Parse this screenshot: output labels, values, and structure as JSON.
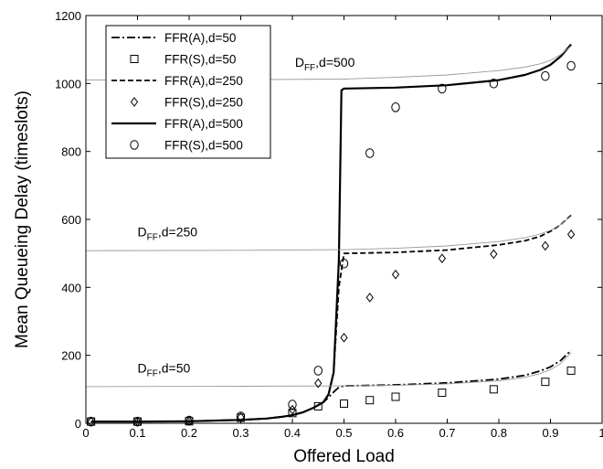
{
  "chart_data": {
    "type": "line",
    "xlabel": "Offered Load",
    "ylabel": "Mean Queueing Delay (timeslots)",
    "xlim": [
      0,
      1
    ],
    "ylim": [
      0,
      1200
    ],
    "xticks": [
      0,
      0.1,
      0.2,
      0.3,
      0.4,
      0.5,
      0.6,
      0.7,
      0.8,
      0.9,
      1
    ],
    "xtick_labels": [
      "0",
      "0.1",
      "0.2",
      "0.3",
      "0.4",
      "0.5",
      "0.6",
      "0.7",
      "0.8",
      "0.9",
      "1"
    ],
    "yticks": [
      0,
      200,
      400,
      600,
      800,
      1000,
      1200
    ],
    "ytick_labels": [
      "0",
      "200",
      "400",
      "600",
      "800",
      "1000",
      "1200"
    ],
    "grid": false,
    "legend_position": "top-left",
    "series": [
      {
        "name": "FFR(A),d=50",
        "style": "dashdot",
        "marker": "none",
        "color": "#000000",
        "x": [
          0.01,
          0.1,
          0.2,
          0.3,
          0.35,
          0.38,
          0.4,
          0.42,
          0.44,
          0.46,
          0.47,
          0.48,
          0.49,
          0.5,
          0.6,
          0.7,
          0.8,
          0.85,
          0.88,
          0.9,
          0.92,
          0.94
        ],
        "y": [
          5,
          5,
          6,
          10,
          14,
          19,
          24,
          32,
          45,
          62,
          76,
          92,
          106,
          110,
          113,
          119,
          130,
          141,
          154,
          166,
          185,
          215
        ]
      },
      {
        "name": "FFR(S),d=50",
        "style": "none",
        "marker": "square",
        "color": "#000000",
        "x": [
          0.01,
          0.1,
          0.2,
          0.3,
          0.4,
          0.45,
          0.5,
          0.55,
          0.6,
          0.69,
          0.79,
          0.89,
          0.94
        ],
        "y": [
          5,
          5,
          6,
          16,
          30,
          50,
          58,
          68,
          78,
          90,
          100,
          122,
          155
        ]
      },
      {
        "name": "FFR(A),d=250",
        "style": "dashed",
        "marker": "none",
        "color": "#000000",
        "x": [
          0.01,
          0.1,
          0.2,
          0.3,
          0.35,
          0.38,
          0.4,
          0.42,
          0.44,
          0.46,
          0.47,
          0.48,
          0.49,
          0.5,
          0.6,
          0.7,
          0.8,
          0.85,
          0.88,
          0.9,
          0.92,
          0.94
        ],
        "y": [
          5,
          5,
          6,
          10,
          14,
          19,
          24,
          32,
          45,
          62,
          85,
          150,
          400,
          500,
          503,
          510,
          525,
          537,
          550,
          565,
          585,
          612
        ]
      },
      {
        "name": "FFR(S),d=250",
        "style": "none",
        "marker": "diamond",
        "color": "#000000",
        "x": [
          0.01,
          0.1,
          0.2,
          0.3,
          0.4,
          0.45,
          0.5,
          0.55,
          0.6,
          0.69,
          0.79,
          0.89,
          0.94
        ],
        "y": [
          5,
          5,
          7,
          18,
          40,
          118,
          252,
          370,
          438,
          485,
          498,
          522,
          556
        ]
      },
      {
        "name": "FFR(A),d=500",
        "style": "solid",
        "marker": "none",
        "color": "#000000",
        "x": [
          0.01,
          0.1,
          0.2,
          0.3,
          0.35,
          0.38,
          0.4,
          0.42,
          0.44,
          0.46,
          0.47,
          0.48,
          0.49,
          0.495,
          0.5,
          0.6,
          0.7,
          0.8,
          0.85,
          0.88,
          0.9,
          0.92,
          0.94
        ],
        "y": [
          5,
          5,
          6,
          10,
          14,
          19,
          24,
          32,
          45,
          62,
          85,
          150,
          480,
          980,
          985,
          988,
          995,
          1010,
          1025,
          1040,
          1055,
          1080,
          1115
        ]
      },
      {
        "name": "FFR(S),d=500",
        "style": "none",
        "marker": "circle",
        "color": "#000000",
        "x": [
          0.01,
          0.1,
          0.2,
          0.3,
          0.4,
          0.45,
          0.5,
          0.55,
          0.6,
          0.69,
          0.79,
          0.89,
          0.94
        ],
        "y": [
          5,
          5,
          8,
          20,
          55,
          155,
          470,
          795,
          930,
          985,
          1000,
          1022,
          1052
        ]
      },
      {
        "name": "",
        "style": "thin-solid",
        "marker": "none",
        "color": "#999999",
        "x": [
          0,
          0.3,
          0.5,
          0.6,
          0.7,
          0.8,
          0.85,
          0.88,
          0.9,
          0.92,
          0.94
        ],
        "y": [
          108,
          109,
          110,
          112,
          116,
          125,
          135,
          146,
          158,
          176,
          208
        ]
      },
      {
        "name": "",
        "style": "thin-solid",
        "marker": "none",
        "color": "#999999",
        "x": [
          0,
          0.3,
          0.5,
          0.6,
          0.7,
          0.8,
          0.85,
          0.88,
          0.9,
          0.92,
          0.94
        ],
        "y": [
          508,
          509,
          511,
          515,
          522,
          535,
          546,
          557,
          568,
          585,
          610
        ]
      },
      {
        "name": "",
        "style": "thin-solid",
        "marker": "none",
        "color": "#999999",
        "x": [
          0,
          0.3,
          0.5,
          0.6,
          0.7,
          0.8,
          0.85,
          0.88,
          0.9,
          0.92,
          0.94
        ],
        "y": [
          1010,
          1011,
          1013,
          1018,
          1025,
          1038,
          1048,
          1058,
          1068,
          1085,
          1110
        ]
      }
    ],
    "annotations": [
      {
        "main": "D",
        "sub": "FF",
        "rest": ",d=500",
        "x": 0.405,
        "y": 1050
      },
      {
        "main": "D",
        "sub": "FF",
        "rest": ",d=250",
        "x": 0.1,
        "y": 550
      },
      {
        "main": "D",
        "sub": "FF",
        "rest": ",d=50",
        "x": 0.1,
        "y": 150
      }
    ]
  }
}
